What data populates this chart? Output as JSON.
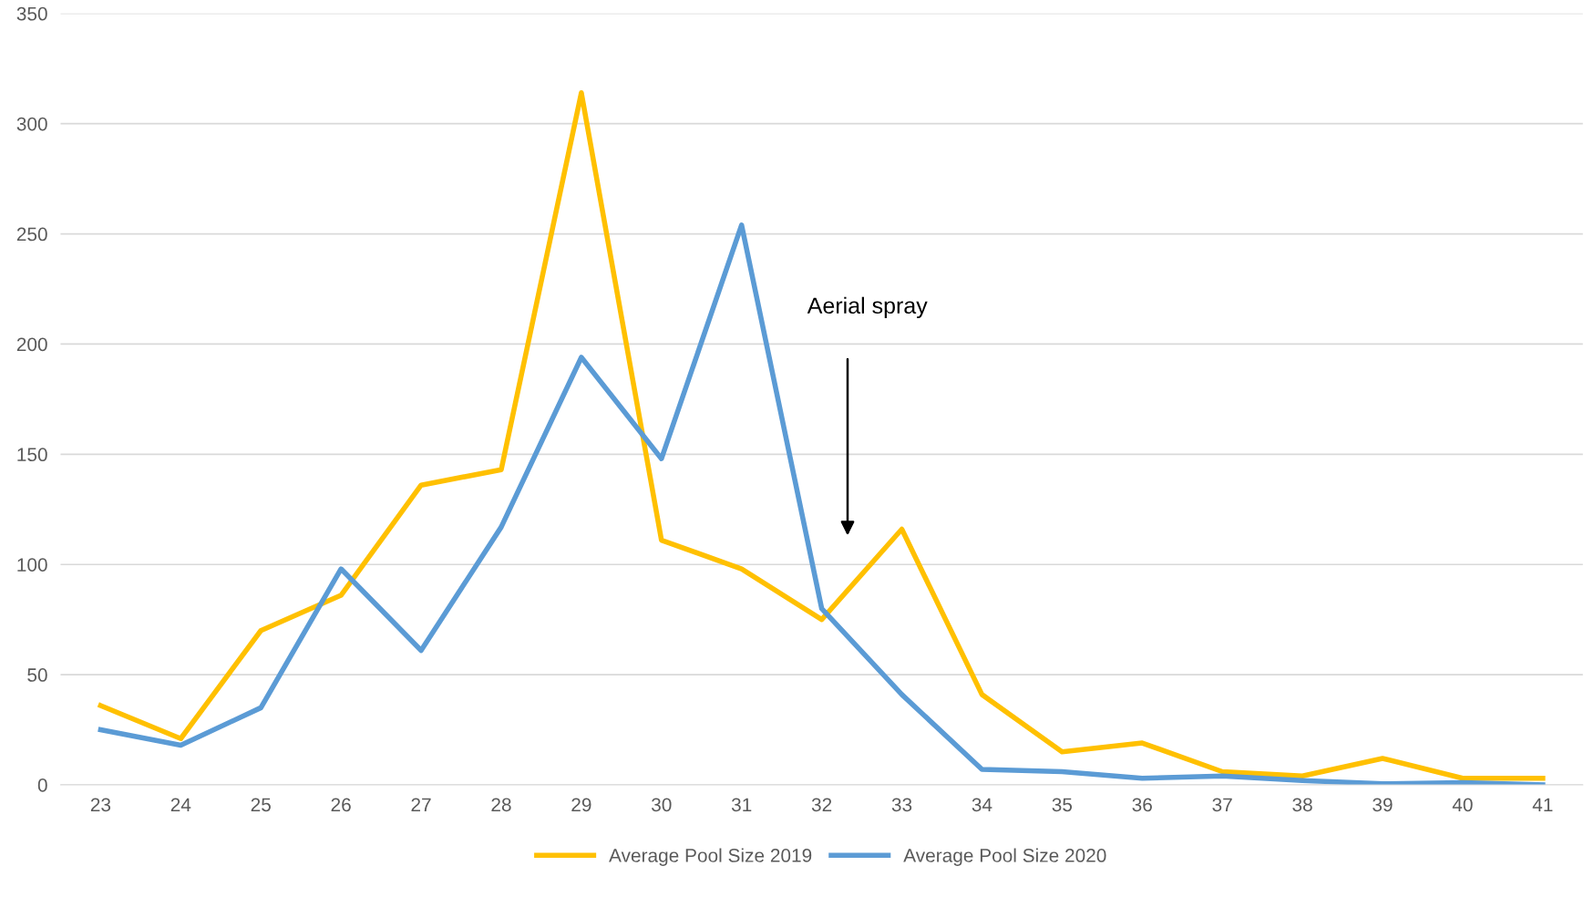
{
  "chart_data": {
    "type": "line",
    "categories": [
      "23",
      "24",
      "25",
      "26",
      "27",
      "28",
      "29",
      "30",
      "31",
      "32",
      "33",
      "34",
      "35",
      "36",
      "37",
      "38",
      "39",
      "40",
      "41"
    ],
    "series": [
      {
        "name": "Average Pool Size 2019",
        "color": "#ffc000",
        "values": [
          36,
          21,
          70,
          86,
          136,
          143,
          314,
          111,
          98,
          75,
          116,
          41,
          15,
          19,
          6,
          4,
          12,
          3,
          3
        ]
      },
      {
        "name": "Average Pool Size 2020",
        "color": "#5b9bd5",
        "values": [
          25,
          18,
          35,
          98,
          61,
          117,
          194,
          148,
          254,
          80,
          41,
          7,
          6,
          3,
          4,
          2,
          0.5,
          1,
          0
        ]
      }
    ],
    "ylim": [
      0,
      350
    ],
    "yticks": [
      0,
      50,
      100,
      150,
      200,
      250,
      300,
      350
    ],
    "grid": "y",
    "legend": "bottom",
    "marker": "none",
    "line_style": "solid",
    "annotations": [
      "Aerial spray"
    ]
  }
}
